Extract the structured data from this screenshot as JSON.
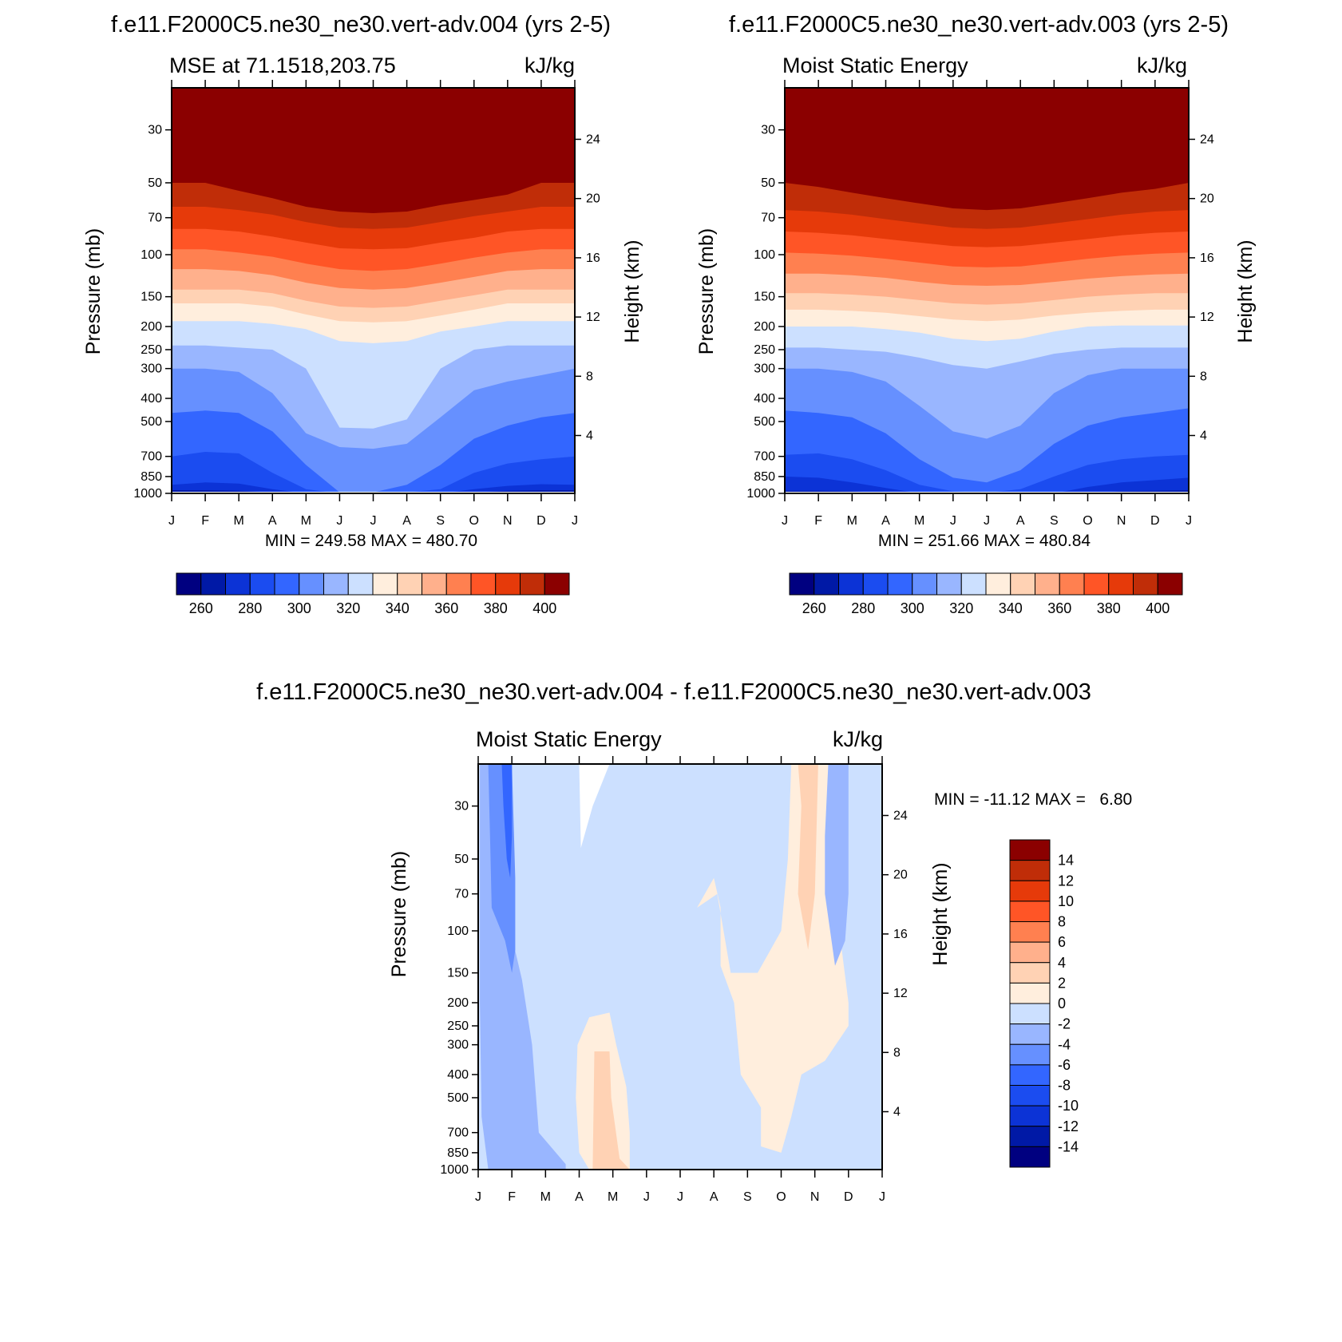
{
  "figure": {
    "top_left_title": "f.e11.F2000C5.ne30_ne30.vert-adv.004 (yrs 2-5)",
    "top_right_title": "f.e11.F2000C5.ne30_ne30.vert-adv.003 (yrs 2-5)",
    "bottom_title": "f.e11.F2000C5.ne30_ne30.vert-adv.004 - f.e11.F2000C5.ne30_ne30.vert-adv.003"
  },
  "chart_data": [
    {
      "type": "heatmap",
      "left_string": "MSE at 71.1518,203.75",
      "right_string": "kJ/kg",
      "ylabel": "Pressure (mb)",
      "ylabel_right": "Height (km)",
      "months": [
        "J",
        "F",
        "M",
        "A",
        "M",
        "J",
        "J",
        "A",
        "S",
        "O",
        "N",
        "D",
        "J"
      ],
      "pressure_ticks": [
        30,
        50,
        70,
        100,
        150,
        200,
        250,
        300,
        400,
        500,
        700,
        850,
        1000
      ],
      "height_ticks": [
        4,
        8,
        12,
        16,
        20,
        24
      ],
      "stats": "MIN = 249.58 MAX = 480.70",
      "levels": [
        260,
        270,
        280,
        290,
        300,
        310,
        320,
        330,
        340,
        350,
        360,
        370,
        380,
        390,
        400
      ],
      "colorbar_labels": [
        260,
        280,
        300,
        320,
        340,
        360,
        380,
        400
      ],
      "colors": [
        "#000080",
        "#0019a6",
        "#0c33d6",
        "#1b4cf0",
        "#3366ff",
        "#6690ff",
        "#99b6ff",
        "#cce0ff",
        "#ffeedd",
        "#ffd2b4",
        "#ffb08c",
        "#ff8050",
        "#ff5526",
        "#e63a0a",
        "#c02d08",
        "#8b0000"
      ],
      "boundaries": [
        [
          1000,
          1000,
          1000,
          1000,
          1000,
          1000,
          1000,
          1000,
          1000,
          1000,
          1000,
          1000,
          1000
        ],
        [
          970,
          970,
          975,
          990,
          1000,
          1000,
          1000,
          1000,
          1000,
          990,
          975,
          970,
          970
        ],
        [
          920,
          900,
          910,
          960,
          1000,
          1000,
          1000,
          1000,
          1000,
          960,
          930,
          915,
          920
        ],
        [
          700,
          670,
          680,
          820,
          960,
          1000,
          1000,
          990,
          960,
          820,
          750,
          720,
          700
        ],
        [
          460,
          450,
          460,
          550,
          760,
          990,
          990,
          920,
          760,
          590,
          520,
          480,
          460
        ],
        [
          300,
          300,
          310,
          380,
          560,
          640,
          650,
          620,
          480,
          370,
          340,
          320,
          300
        ],
        [
          240,
          240,
          245,
          250,
          300,
          530,
          535,
          490,
          300,
          250,
          240,
          240,
          240
        ],
        [
          190,
          190,
          190,
          195,
          205,
          230,
          235,
          230,
          210,
          200,
          190,
          190,
          190
        ],
        [
          160,
          160,
          160,
          165,
          178,
          190,
          192,
          190,
          180,
          170,
          160,
          160,
          160
        ],
        [
          140,
          140,
          140,
          145,
          156,
          165,
          167,
          165,
          156,
          148,
          140,
          140,
          140
        ],
        [
          115,
          115,
          117,
          122,
          131,
          138,
          140,
          138,
          131,
          124,
          117,
          115,
          115
        ],
        [
          95,
          95,
          98,
          102,
          109,
          115,
          117,
          115,
          109,
          103,
          98,
          95,
          95
        ],
        [
          78,
          78,
          80,
          84,
          89,
          94,
          95,
          94,
          89,
          85,
          80,
          78,
          78
        ],
        [
          63,
          63,
          65,
          68,
          73,
          77,
          78,
          77,
          73,
          69,
          66,
          63,
          63
        ],
        [
          50,
          50,
          54,
          58,
          63,
          66,
          67,
          66,
          62,
          59,
          56,
          50,
          50
        ]
      ]
    },
    {
      "type": "heatmap",
      "left_string": "Moist Static Energy",
      "right_string": "kJ/kg",
      "ylabel": "Pressure (mb)",
      "ylabel_right": "Height (km)",
      "months": [
        "J",
        "F",
        "M",
        "A",
        "M",
        "J",
        "J",
        "A",
        "S",
        "O",
        "N",
        "D",
        "J"
      ],
      "pressure_ticks": [
        30,
        50,
        70,
        100,
        150,
        200,
        250,
        300,
        400,
        500,
        700,
        850,
        1000
      ],
      "height_ticks": [
        4,
        8,
        12,
        16,
        20,
        24
      ],
      "stats": "MIN = 251.66 MAX = 480.84",
      "levels": [
        260,
        270,
        280,
        290,
        300,
        310,
        320,
        330,
        340,
        350,
        360,
        370,
        380,
        390,
        400
      ],
      "colorbar_labels": [
        260,
        280,
        300,
        320,
        340,
        360,
        380,
        400
      ],
      "colors": [
        "#000080",
        "#0019a6",
        "#0c33d6",
        "#1b4cf0",
        "#3366ff",
        "#6690ff",
        "#99b6ff",
        "#cce0ff",
        "#ffeedd",
        "#ffd2b4",
        "#ffb08c",
        "#ff8050",
        "#ff5526",
        "#e63a0a",
        "#c02d08",
        "#8b0000"
      ],
      "boundaries": [
        [
          1000,
          1000,
          1000,
          1000,
          1000,
          1000,
          1000,
          1000,
          1000,
          1000,
          1000,
          1000,
          1000
        ],
        [
          975,
          975,
          980,
          995,
          1000,
          1000,
          1000,
          1000,
          1000,
          995,
          980,
          975,
          970
        ],
        [
          850,
          860,
          900,
          950,
          1000,
          1000,
          1000,
          1000,
          1000,
          940,
          900,
          880,
          860
        ],
        [
          690,
          680,
          720,
          800,
          920,
          980,
          995,
          960,
          850,
          760,
          720,
          700,
          690
        ],
        [
          450,
          460,
          480,
          560,
          720,
          860,
          900,
          800,
          620,
          520,
          480,
          460,
          440
        ],
        [
          300,
          300,
          310,
          340,
          430,
          550,
          590,
          520,
          380,
          320,
          300,
          300,
          300
        ],
        [
          245,
          245,
          250,
          255,
          270,
          290,
          300,
          280,
          260,
          250,
          245,
          245,
          245
        ],
        [
          200,
          200,
          200,
          205,
          212,
          225,
          230,
          225,
          210,
          200,
          198,
          198,
          198
        ],
        [
          170,
          170,
          172,
          175,
          181,
          187,
          190,
          187,
          180,
          175,
          172,
          170,
          170
        ],
        [
          145,
          145,
          147,
          150,
          155,
          160,
          162,
          160,
          155,
          150,
          147,
          145,
          145
        ],
        [
          120,
          120,
          122,
          125,
          130,
          134,
          135,
          134,
          130,
          126,
          123,
          121,
          120
        ],
        [
          98,
          99,
          101,
          104,
          108,
          112,
          113,
          112,
          108,
          104,
          101,
          99,
          98
        ],
        [
          80,
          81,
          83,
          86,
          89,
          92,
          93,
          92,
          89,
          86,
          83,
          81,
          80
        ],
        [
          65,
          66,
          68,
          71,
          74,
          77,
          78,
          77,
          74,
          71,
          68,
          66,
          65
        ],
        [
          50,
          52,
          55,
          58,
          61,
          64,
          65,
          64,
          61,
          58,
          55,
          53,
          50
        ]
      ]
    },
    {
      "type": "heatmap",
      "left_string": "Moist Static Energy",
      "right_string": "kJ/kg",
      "ylabel": "Pressure (mb)",
      "ylabel_right": "Height (km)",
      "months": [
        "J",
        "F",
        "M",
        "A",
        "M",
        "J",
        "J",
        "A",
        "S",
        "O",
        "N",
        "D",
        "J"
      ],
      "pressure_ticks": [
        30,
        50,
        70,
        100,
        150,
        200,
        250,
        300,
        400,
        500,
        700,
        850,
        1000
      ],
      "height_ticks": [
        4,
        8,
        12,
        16,
        20,
        24
      ],
      "stats": "MIN = -11.12 MAX =   6.80",
      "levels": [
        -14,
        -12,
        -10,
        -8,
        -6,
        -4,
        -2,
        0,
        2,
        4,
        6,
        8,
        10,
        12,
        14
      ],
      "colorbar_labels": [
        14,
        12,
        10,
        8,
        6,
        4,
        2,
        0,
        -2,
        -4,
        -6,
        -8,
        -10,
        -12,
        -14
      ],
      "colors": [
        "#000080",
        "#0019a6",
        "#0c33d6",
        "#1b4cf0",
        "#3366ff",
        "#6690ff",
        "#99b6ff",
        "#cce0ff",
        "#ffeedd",
        "#ffd2b4",
        "#ffb08c",
        "#ff8050",
        "#ff5526",
        "#e63a0a",
        "#c02d08",
        "#8b0000"
      ],
      "regions": [
        {
          "level": "-4 to -2",
          "points": [
            [
              0.05,
              20
            ],
            [
              0.45,
              20
            ],
            [
              0.6,
              40
            ],
            [
              0.8,
              80
            ],
            [
              1.3,
              160
            ],
            [
              1.6,
              300
            ],
            [
              1.8,
              700
            ],
            [
              2.6,
              950
            ],
            [
              2.6,
              1000
            ],
            [
              0.3,
              1000
            ],
            [
              0.1,
              600
            ],
            [
              0.05,
              200
            ]
          ]
        },
        {
          "level": "-6 to -4",
          "points": [
            [
              0.3,
              20
            ],
            [
              1.0,
              20
            ],
            [
              1.1,
              60
            ],
            [
              1.1,
              120
            ],
            [
              1.0,
              150
            ],
            [
              0.8,
              110
            ],
            [
              0.4,
              80
            ],
            [
              0.35,
              40
            ]
          ]
        },
        {
          "level": "-8 to -6",
          "points": [
            [
              0.7,
              20
            ],
            [
              1.0,
              20
            ],
            [
              1.0,
              40
            ],
            [
              0.95,
              60
            ],
            [
              0.85,
              50
            ],
            [
              0.75,
              30
            ]
          ]
        },
        {
          "level": "0 to 2",
          "points": [
            [
              2.95,
              300
            ],
            [
              3.3,
              230
            ],
            [
              3.9,
              220
            ],
            [
              4.1,
              300
            ],
            [
              4.4,
              450
            ],
            [
              4.5,
              700
            ],
            [
              4.5,
              1000
            ],
            [
              3.3,
              1000
            ],
            [
              3.0,
              850
            ],
            [
              2.9,
              500
            ]
          ]
        },
        {
          "level": "2 to 4",
          "points": [
            [
              3.9,
              320
            ],
            [
              3.95,
              500
            ],
            [
              4.2,
              900
            ],
            [
              4.5,
              1000
            ],
            [
              3.4,
              1000
            ],
            [
              3.45,
              320
            ]
          ]
        },
        {
          "level": "0 to 2",
          "points": [
            [
              6.5,
              80
            ],
            [
              7.0,
              60
            ],
            [
              7.2,
              80
            ],
            [
              7.2,
              140
            ],
            [
              7.6,
              200
            ],
            [
              7.8,
              400
            ],
            [
              8.4,
              550
            ],
            [
              8.4,
              800
            ],
            [
              9.0,
              850
            ],
            [
              9.3,
              600
            ],
            [
              9.6,
              400
            ],
            [
              10.3,
              350
            ],
            [
              11.0,
              250
            ],
            [
              11.0,
              200
            ],
            [
              10.8,
              120
            ],
            [
              10.6,
              70
            ],
            [
              10.7,
              20
            ],
            [
              9.3,
              20
            ],
            [
              9.2,
              50
            ],
            [
              9.0,
              100
            ],
            [
              8.3,
              150
            ],
            [
              7.5,
              150
            ],
            [
              7.1,
              70
            ]
          ]
        },
        {
          "level": "2 to 4",
          "points": [
            [
              9.5,
              20
            ],
            [
              10.1,
              20
            ],
            [
              10.0,
              70
            ],
            [
              9.8,
              120
            ],
            [
              9.5,
              70
            ],
            [
              9.6,
              30
            ]
          ]
        },
        {
          "level": "-4 to -2",
          "points": [
            [
              10.4,
              20
            ],
            [
              11.0,
              20
            ],
            [
              11.0,
              70
            ],
            [
              10.9,
              110
            ],
            [
              10.6,
              140
            ],
            [
              10.3,
              70
            ],
            [
              10.3,
              40
            ]
          ]
        }
      ]
    }
  ]
}
